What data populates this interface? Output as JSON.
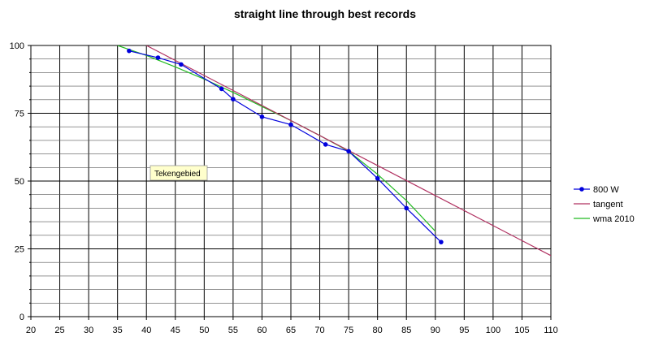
{
  "chart_data": {
    "type": "line",
    "title": "straight line through best records",
    "xlabel": "",
    "ylabel": "",
    "xlim": [
      20,
      110
    ],
    "ylim": [
      0,
      100
    ],
    "x_ticks": [
      20,
      25,
      30,
      35,
      40,
      45,
      50,
      55,
      60,
      65,
      70,
      75,
      80,
      85,
      90,
      95,
      100,
      105,
      110
    ],
    "y_ticks": [
      0,
      25,
      50,
      75,
      100
    ],
    "grid": true,
    "legend_position": "right",
    "series": [
      {
        "name": "800 W",
        "color": "#0000dd",
        "marker": "circle",
        "x": [
          37,
          42,
          46,
          53,
          55,
          60,
          65,
          71,
          75,
          80,
          85,
          91
        ],
        "y": [
          98,
          95.5,
          93,
          84,
          80.2,
          73.7,
          70.8,
          63.5,
          61,
          51,
          40,
          27.5
        ]
      },
      {
        "name": "tangent",
        "color": "#b03060",
        "marker": "none",
        "x": [
          40,
          110
        ],
        "y": [
          100,
          22.5
        ]
      },
      {
        "name": "wma 2010",
        "color": "#22bb22",
        "marker": "none",
        "x": [
          35,
          40,
          45,
          50,
          55,
          60,
          65,
          70,
          75,
          80,
          85,
          90
        ],
        "y": [
          100,
          96.3,
          92.1,
          87.6,
          82.7,
          77.5,
          72.3,
          66.8,
          61.0,
          52.5,
          42.8,
          31.5
        ]
      }
    ]
  },
  "tooltip": {
    "text": "Tekengebied"
  }
}
